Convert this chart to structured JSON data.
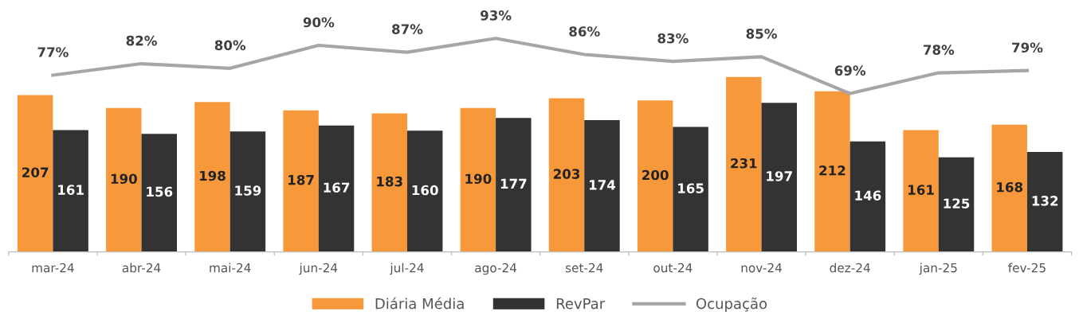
{
  "chart_data": {
    "type": "bar",
    "categories": [
      "mar-24",
      "abr-24",
      "mai-24",
      "jun-24",
      "jul-24",
      "ago-24",
      "set-24",
      "out-24",
      "nov-24",
      "dez-24",
      "jan-25",
      "fev-25"
    ],
    "series": [
      {
        "name": "Diária Média",
        "color": "#f7993a",
        "values": [
          207,
          190,
          198,
          187,
          183,
          190,
          203,
          200,
          231,
          212,
          161,
          168
        ]
      },
      {
        "name": "RevPar",
        "color": "#333333",
        "values": [
          161,
          156,
          159,
          167,
          160,
          177,
          174,
          165,
          197,
          146,
          125,
          132
        ]
      },
      {
        "name": "Ocupação",
        "type": "line",
        "axis": "y2",
        "color": "#a6a6a6",
        "values": [
          77,
          82,
          80,
          90,
          87,
          93,
          86,
          83,
          85,
          69,
          78,
          79
        ],
        "value_labels": [
          "77%",
          "82%",
          "80%",
          "90%",
          "87%",
          "93%",
          "86%",
          "83%",
          "85%",
          "69%",
          "78%",
          "79%"
        ]
      }
    ],
    "data_labels": true,
    "tick_labels": "x",
    "legend": "bottom",
    "line_style": "solid",
    "marker": "none"
  }
}
